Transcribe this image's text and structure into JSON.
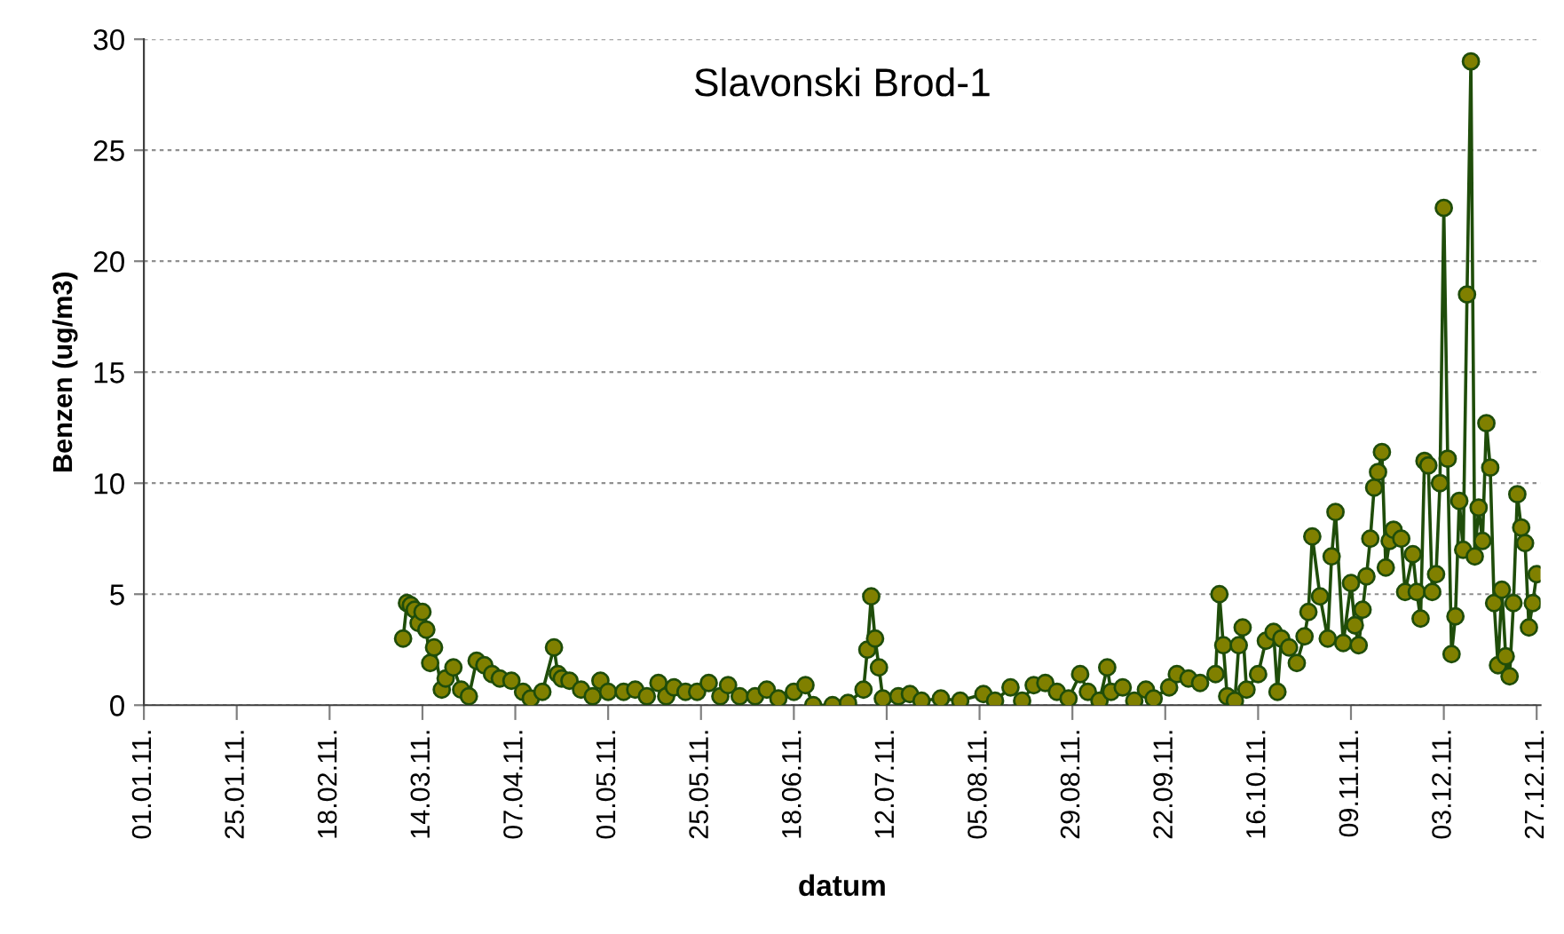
{
  "chart_data": {
    "type": "line",
    "title": "Slavonski Brod-1",
    "xlabel": "datum",
    "ylabel": "Benzen (ug/m3)",
    "xlim": [
      "2011-01-01",
      "2011-12-28"
    ],
    "xticks": [
      {
        "value": "2011-01-01",
        "label": "01.01.11."
      },
      {
        "value": "2011-01-25",
        "label": "25.01.11."
      },
      {
        "value": "2011-02-18",
        "label": "18.02.11."
      },
      {
        "value": "2011-03-14",
        "label": "14.03.11."
      },
      {
        "value": "2011-04-07",
        "label": "07.04.11."
      },
      {
        "value": "2011-05-01",
        "label": "01.05.11."
      },
      {
        "value": "2011-05-25",
        "label": "25.05.11."
      },
      {
        "value": "2011-06-18",
        "label": "18.06.11."
      },
      {
        "value": "2011-07-12",
        "label": "12.07.11."
      },
      {
        "value": "2011-08-05",
        "label": "05.08.11."
      },
      {
        "value": "2011-08-29",
        "label": "29.08.11."
      },
      {
        "value": "2011-09-22",
        "label": "22.09.11."
      },
      {
        "value": "2011-10-16",
        "label": "16.10.11."
      },
      {
        "value": "2011-11-09",
        "label": "09.11.11."
      },
      {
        "value": "2011-12-03",
        "label": "03.12.11."
      },
      {
        "value": "2011-12-27",
        "label": "27.12.11."
      }
    ],
    "ylim": [
      0,
      30
    ],
    "yticks": [
      0,
      5,
      10,
      15,
      20,
      25,
      30
    ],
    "grid": "y",
    "legend": false,
    "marker": "circle",
    "line_style": "solid",
    "series": [
      {
        "color": "#808000",
        "x": [
          "2011-03-09",
          "2011-03-10",
          "2011-03-11",
          "2011-03-12",
          "2011-03-13",
          "2011-03-14",
          "2011-03-15",
          "2011-03-16",
          "2011-03-17",
          "2011-03-19",
          "2011-03-20",
          "2011-03-22",
          "2011-03-24",
          "2011-03-26",
          "2011-03-28",
          "2011-03-30",
          "2011-04-01",
          "2011-04-03",
          "2011-04-06",
          "2011-04-09",
          "2011-04-11",
          "2011-04-14",
          "2011-04-17",
          "2011-04-18",
          "2011-04-19",
          "2011-04-21",
          "2011-04-24",
          "2011-04-27",
          "2011-04-29",
          "2011-05-01",
          "2011-05-05",
          "2011-05-08",
          "2011-05-11",
          "2011-05-14",
          "2011-05-16",
          "2011-05-18",
          "2011-05-21",
          "2011-05-24",
          "2011-05-27",
          "2011-05-30",
          "2011-06-01",
          "2011-06-04",
          "2011-06-08",
          "2011-06-11",
          "2011-06-14",
          "2011-06-18",
          "2011-06-21",
          "2011-06-23",
          "2011-06-28",
          "2011-07-02",
          "2011-07-06",
          "2011-07-07",
          "2011-07-08",
          "2011-07-09",
          "2011-07-10",
          "2011-07-11",
          "2011-07-15",
          "2011-07-18",
          "2011-07-21",
          "2011-07-26",
          "2011-07-31",
          "2011-08-06",
          "2011-08-09",
          "2011-08-13",
          "2011-08-16",
          "2011-08-19",
          "2011-08-22",
          "2011-08-25",
          "2011-08-28",
          "2011-08-31",
          "2011-09-02",
          "2011-09-05",
          "2011-09-07",
          "2011-09-08",
          "2011-09-11",
          "2011-09-14",
          "2011-09-17",
          "2011-09-19",
          "2011-09-23",
          "2011-09-25",
          "2011-09-28",
          "2011-10-01",
          "2011-10-05",
          "2011-10-06",
          "2011-10-07",
          "2011-10-08",
          "2011-10-10",
          "2011-10-11",
          "2011-10-12",
          "2011-10-13",
          "2011-10-16",
          "2011-10-18",
          "2011-10-20",
          "2011-10-21",
          "2011-10-22",
          "2011-10-24",
          "2011-10-26",
          "2011-10-28",
          "2011-10-29",
          "2011-10-30",
          "2011-11-01",
          "2011-11-03",
          "2011-11-04",
          "2011-11-05",
          "2011-11-07",
          "2011-11-09",
          "2011-11-10",
          "2011-11-11",
          "2011-11-12",
          "2011-11-13",
          "2011-11-14",
          "2011-11-15",
          "2011-11-16",
          "2011-11-17",
          "2011-11-18",
          "2011-11-19",
          "2011-11-20",
          "2011-11-22",
          "2011-11-23",
          "2011-11-25",
          "2011-11-26",
          "2011-11-27",
          "2011-11-28",
          "2011-11-29",
          "2011-11-30",
          "2011-12-01",
          "2011-12-02",
          "2011-12-03",
          "2011-12-04",
          "2011-12-05",
          "2011-12-06",
          "2011-12-07",
          "2011-12-08",
          "2011-12-09",
          "2011-12-10",
          "2011-12-11",
          "2011-12-12",
          "2011-12-13",
          "2011-12-14",
          "2011-12-15",
          "2011-12-16",
          "2011-12-17",
          "2011-12-18",
          "2011-12-19",
          "2011-12-20",
          "2011-12-21",
          "2011-12-22",
          "2011-12-23",
          "2011-12-24",
          "2011-12-25",
          "2011-12-26",
          "2011-12-27"
        ],
        "values": [
          3.0,
          4.6,
          4.5,
          4.3,
          3.7,
          4.2,
          3.4,
          1.9,
          2.6,
          0.7,
          1.2,
          1.7,
          0.7,
          0.4,
          2.0,
          1.8,
          1.4,
          1.2,
          1.1,
          0.6,
          0.3,
          0.6,
          2.6,
          1.4,
          1.2,
          1.1,
          0.7,
          0.4,
          1.1,
          0.6,
          0.6,
          0.7,
          0.4,
          1.0,
          0.4,
          0.8,
          0.6,
          0.6,
          1.0,
          0.4,
          0.9,
          0.4,
          0.4,
          0.7,
          0.3,
          0.6,
          0.9,
          0.0,
          0.0,
          0.1,
          0.7,
          2.5,
          4.9,
          3.0,
          1.7,
          0.3,
          0.4,
          0.5,
          0.2,
          0.3,
          0.2,
          0.5,
          0.2,
          0.8,
          0.2,
          0.9,
          1.0,
          0.6,
          0.3,
          1.4,
          0.6,
          0.2,
          1.7,
          0.6,
          0.8,
          0.2,
          0.7,
          0.3,
          0.8,
          1.4,
          1.2,
          1.0,
          1.4,
          5.0,
          2.7,
          0.4,
          0.2,
          2.7,
          3.5,
          0.7,
          1.4,
          2.9,
          3.3,
          0.6,
          3.0,
          2.6,
          1.9,
          3.1,
          4.2,
          7.6,
          4.9,
          3.0,
          6.7,
          8.7,
          2.8,
          5.5,
          3.6,
          2.7,
          4.3,
          5.8,
          7.5,
          9.8,
          10.5,
          11.4,
          6.2,
          7.4,
          7.9,
          7.5,
          5.1,
          6.8,
          5.1,
          3.9,
          11.0,
          10.8,
          5.1,
          5.9,
          10.0,
          22.4,
          11.1,
          2.3,
          4.0,
          9.2,
          7.0,
          18.5,
          29.0,
          6.7,
          8.9,
          7.4,
          12.7,
          10.7,
          4.6,
          1.8,
          5.2,
          2.2,
          1.3,
          4.6,
          9.5,
          8.0,
          7.3,
          3.5,
          4.6,
          5.9
        ]
      }
    ]
  }
}
